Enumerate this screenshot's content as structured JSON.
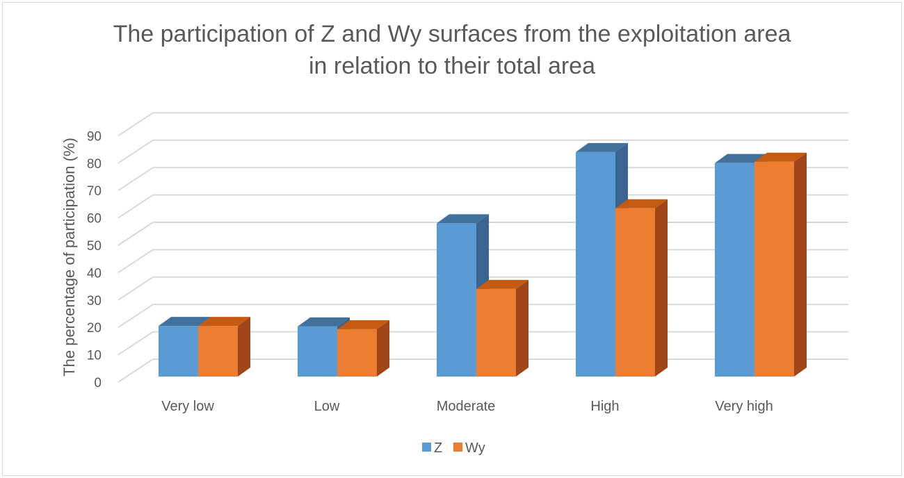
{
  "chart_data": {
    "type": "bar",
    "title_line1": "The participation of Z and Wy surfaces from the exploitation area",
    "title_line2": "in relation to their total area",
    "xlabel": "",
    "ylabel": "The percentage of participation (%)",
    "ylim": [
      0,
      90
    ],
    "y_ticks": [
      "0",
      "10",
      "20",
      "30",
      "40",
      "50",
      "60",
      "70",
      "80",
      "90"
    ],
    "categories": [
      "Very low",
      "Low",
      "Moderate",
      "High",
      "Very high"
    ],
    "series": [
      {
        "name": "Z",
        "values": [
          18.5,
          18.3,
          56,
          82,
          78
        ],
        "color": "#5b9bd5",
        "top_color": "#41719c",
        "side_color": "#3a6591"
      },
      {
        "name": "Wy",
        "values": [
          18.5,
          17.3,
          32,
          61.5,
          78.5
        ],
        "color": "#ed7d31",
        "top_color": "#c55a11",
        "side_color": "#a0461a"
      }
    ],
    "grid": true,
    "legend_position": "bottom"
  }
}
